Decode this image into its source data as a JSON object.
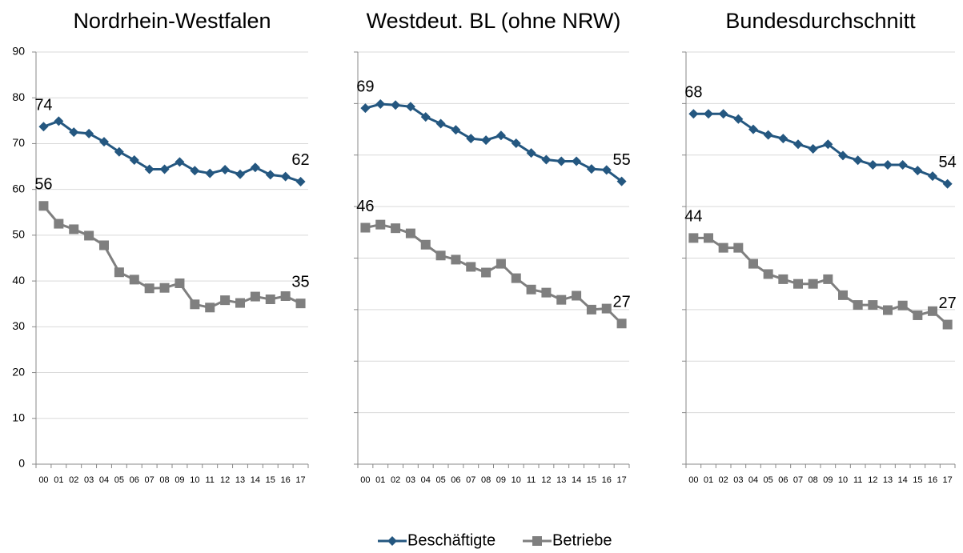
{
  "chart_data": [
    {
      "type": "line",
      "title": "Nordrhein-Westfalen",
      "show_tick_labels": true,
      "categories": [
        "00",
        "01",
        "02",
        "03",
        "04",
        "05",
        "06",
        "07",
        "08",
        "09",
        "10",
        "11",
        "12",
        "13",
        "14",
        "15",
        "16",
        "17"
      ],
      "ylim": [
        0,
        90
      ],
      "yticks": [
        0,
        10,
        20,
        30,
        40,
        50,
        60,
        70,
        80,
        90
      ],
      "grid": true,
      "series": [
        {
          "name": "Beschäftigte",
          "color": "#245780",
          "marker": "diamond",
          "values": [
            73.7,
            74.9,
            72.5,
            72.2,
            70.4,
            68.2,
            66.4,
            64.4,
            64.4,
            66.0,
            64.1,
            63.5,
            64.3,
            63.3,
            64.8,
            63.2,
            62.8,
            61.7
          ],
          "value_labels": [
            "74",
            null,
            null,
            null,
            null,
            null,
            null,
            null,
            null,
            null,
            null,
            null,
            null,
            null,
            null,
            null,
            null,
            "62"
          ]
        },
        {
          "name": "Betriebe",
          "color": "#7f7f7f",
          "marker": "square",
          "values": [
            56.4,
            52.5,
            51.3,
            49.9,
            47.8,
            41.9,
            40.3,
            38.4,
            38.5,
            39.5,
            34.9,
            34.2,
            35.8,
            35.2,
            36.6,
            36.0,
            36.7,
            35.1
          ],
          "value_labels": [
            "56",
            null,
            null,
            null,
            null,
            null,
            null,
            null,
            null,
            null,
            null,
            null,
            null,
            null,
            null,
            null,
            null,
            "35"
          ]
        }
      ]
    },
    {
      "type": "line",
      "title": "Westdeut. BL (ohne NRW)",
      "show_tick_labels": false,
      "categories": [
        "00",
        "01",
        "02",
        "03",
        "04",
        "05",
        "06",
        "07",
        "08",
        "09",
        "10",
        "11",
        "12",
        "13",
        "14",
        "15",
        "16",
        "17"
      ],
      "ylim": [
        0,
        80
      ],
      "yticks": [
        0,
        10,
        20,
        30,
        40,
        50,
        60,
        70,
        80
      ],
      "grid": true,
      "series": [
        {
          "color": "#245780",
          "marker": "diamond",
          "values": [
            69.1,
            69.9,
            69.7,
            69.4,
            67.4,
            66.1,
            64.9,
            63.2,
            62.9,
            63.8,
            62.3,
            60.4,
            59.1,
            58.8,
            58.8,
            57.3,
            57.1,
            54.9
          ],
          "value_labels": [
            "69",
            null,
            null,
            null,
            null,
            null,
            null,
            null,
            null,
            null,
            null,
            null,
            null,
            null,
            null,
            null,
            null,
            "55"
          ]
        },
        {
          "color": "#7f7f7f",
          "marker": "square",
          "values": [
            45.9,
            46.5,
            45.8,
            44.8,
            42.6,
            40.5,
            39.7,
            38.3,
            37.2,
            38.9,
            36.1,
            33.9,
            33.3,
            31.9,
            32.7,
            30.0,
            30.2,
            27.3
          ],
          "value_labels": [
            "46",
            null,
            null,
            null,
            null,
            null,
            null,
            null,
            null,
            null,
            null,
            null,
            null,
            null,
            null,
            null,
            null,
            "27"
          ]
        }
      ]
    },
    {
      "type": "line",
      "title": "Bundesdurchschnitt",
      "show_tick_labels": false,
      "categories": [
        "00",
        "01",
        "02",
        "03",
        "04",
        "05",
        "06",
        "07",
        "08",
        "09",
        "10",
        "11",
        "12",
        "13",
        "14",
        "15",
        "16",
        "17"
      ],
      "ylim": [
        0,
        80
      ],
      "yticks": [
        0,
        10,
        20,
        30,
        40,
        50,
        60,
        70,
        80
      ],
      "grid": true,
      "series": [
        {
          "color": "#245780",
          "marker": "diamond",
          "values": [
            68.0,
            68.0,
            68.0,
            67.0,
            65.0,
            63.9,
            63.2,
            62.1,
            61.2,
            62.1,
            59.9,
            59.0,
            58.1,
            58.1,
            58.1,
            57.0,
            55.9,
            54.4
          ],
          "value_labels": [
            "68",
            null,
            null,
            null,
            null,
            null,
            null,
            null,
            null,
            null,
            null,
            null,
            null,
            null,
            null,
            null,
            null,
            "54"
          ]
        },
        {
          "color": "#7f7f7f",
          "marker": "square",
          "values": [
            43.9,
            43.9,
            42.0,
            42.0,
            38.9,
            36.9,
            35.9,
            35.0,
            35.0,
            35.9,
            32.8,
            30.9,
            30.9,
            29.9,
            30.8,
            28.9,
            29.7,
            27.1
          ],
          "value_labels": [
            "44",
            null,
            null,
            null,
            null,
            null,
            null,
            null,
            null,
            null,
            null,
            null,
            null,
            null,
            null,
            null,
            null,
            "27"
          ]
        }
      ]
    }
  ]
}
